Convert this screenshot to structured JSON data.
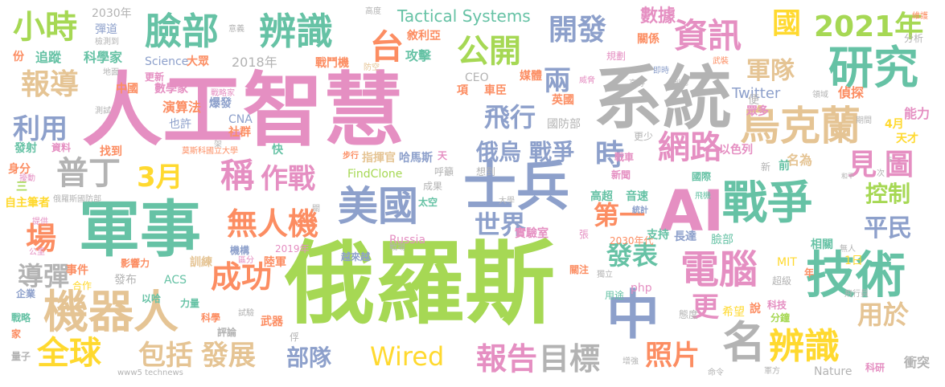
{
  "palette": {
    "pink": "#e58fc2",
    "gray": "#b3b3b3",
    "green": "#a6d854",
    "teal": "#66c2a5",
    "orange": "#fc8d62",
    "blue": "#8da0cb",
    "yellow": "#ffd92f",
    "tan": "#e5c494"
  },
  "words": [
    {
      "text": "人工智慧",
      "color": "#e58fc2"
    },
    {
      "text": "俄羅斯",
      "color": "#a6d854"
    },
    {
      "text": "系統",
      "color": "#b3b3b3"
    },
    {
      "text": "軍事",
      "color": "#66c2a5"
    },
    {
      "text": "士兵",
      "color": "#8da0cb"
    },
    {
      "text": "AI",
      "color": "#e58fc2"
    },
    {
      "text": "戰爭",
      "color": "#66c2a5"
    },
    {
      "text": "技術",
      "color": "#66c2a5"
    },
    {
      "text": "中",
      "color": "#8da0cb"
    },
    {
      "text": "機器人",
      "color": "#e5c494"
    },
    {
      "text": "烏克蘭",
      "color": "#e5c494"
    },
    {
      "text": "研究",
      "color": "#66c2a5"
    },
    {
      "text": "臉部",
      "color": "#66c2a5"
    },
    {
      "text": "辨識",
      "color": "#66c2a5"
    },
    {
      "text": "美國",
      "color": "#8da0cb"
    },
    {
      "text": "電腦",
      "color": "#e58fc2"
    },
    {
      "text": "網路",
      "color": "#e58fc2"
    },
    {
      "text": "名",
      "color": "#b3b3b3"
    },
    {
      "text": "辨識",
      "color": "#ffd92f"
    },
    {
      "text": "報告",
      "color": "#e58fc2"
    },
    {
      "text": "目標",
      "color": "#b3b3b3"
    },
    {
      "text": "Wired",
      "color": "#ffd92f"
    },
    {
      "text": "無人機",
      "color": "#fc8d62"
    },
    {
      "text": "普丁",
      "color": "#b3b3b3"
    },
    {
      "text": "稱",
      "color": "#e58fc2"
    },
    {
      "text": "作戰",
      "color": "#e58fc2"
    },
    {
      "text": "全球",
      "color": "#ffd92f"
    },
    {
      "text": "包括",
      "color": "#e5c494"
    },
    {
      "text": "發展",
      "color": "#e5c494"
    },
    {
      "text": "資訊",
      "color": "#e58fc2"
    },
    {
      "text": "公開",
      "color": "#a6d854"
    },
    {
      "text": "開發",
      "color": "#8da0cb"
    },
    {
      "text": "小時",
      "color": "#a6d854"
    },
    {
      "text": "報導",
      "color": "#e5c494"
    },
    {
      "text": "2021年",
      "color": "#a6d854"
    },
    {
      "text": "軍隊",
      "color": "#e5c494"
    },
    {
      "text": "國",
      "color": "#ffd92f"
    },
    {
      "text": "台",
      "color": "#fc8d62"
    },
    {
      "text": "兩",
      "color": "#8da0cb"
    },
    {
      "text": "飛行",
      "color": "#8da0cb"
    },
    {
      "text": "俄烏",
      "color": "#8da0cb"
    },
    {
      "text": "戰爭",
      "color": "#8da0cb"
    },
    {
      "text": "時",
      "color": "#8da0cb"
    },
    {
      "text": "見",
      "color": "#e58fc2"
    },
    {
      "text": "圖",
      "color": "#e58fc2"
    },
    {
      "text": "利用",
      "color": "#8da0cb"
    },
    {
      "text": "3月",
      "color": "#ffd92f"
    },
    {
      "text": "場",
      "color": "#fc8d62"
    },
    {
      "text": "導彈",
      "color": "#b3b3b3"
    },
    {
      "text": "控制",
      "color": "#a6d854"
    },
    {
      "text": "平民",
      "color": "#8da0cb"
    },
    {
      "text": "第一",
      "color": "#fc8d62"
    },
    {
      "text": "世界",
      "color": "#8da0cb"
    },
    {
      "text": "發表",
      "color": "#66c2a5"
    },
    {
      "text": "成功",
      "color": "#fc8d62"
    },
    {
      "text": "更",
      "color": "#e58fc2"
    },
    {
      "text": "照片",
      "color": "#fc8d62"
    },
    {
      "text": "用於",
      "color": "#e5c494"
    },
    {
      "text": "部隊",
      "color": "#8da0cb"
    },
    {
      "text": "Tactical Systems",
      "color": "#66c2a5"
    },
    {
      "text": "2030年",
      "color": "#b3b3b3"
    },
    {
      "text": "敘利亞",
      "color": "#fc8d62"
    },
    {
      "text": "攻擊",
      "color": "#66c2a5"
    },
    {
      "text": "追蹤",
      "color": "#66c2a5"
    },
    {
      "text": "科學家",
      "color": "#66c2a5"
    },
    {
      "text": "Science",
      "color": "#8da0cb"
    },
    {
      "text": "大眾",
      "color": "#fc8d62"
    },
    {
      "text": "2018年",
      "color": "#b3b3b3"
    },
    {
      "text": "戰鬥機",
      "color": "#fc8d62"
    },
    {
      "text": "數據",
      "color": "#e58fc2"
    },
    {
      "text": "關係",
      "color": "#fc8d62"
    },
    {
      "text": "CEO",
      "color": "#b3b3b3"
    },
    {
      "text": "媒體",
      "color": "#fc8d62"
    },
    {
      "text": "項",
      "color": "#fc8d62"
    },
    {
      "text": "車臣",
      "color": "#fc8d62"
    },
    {
      "text": "中國",
      "color": "#fc8d62"
    },
    {
      "text": "數學家",
      "color": "#e58fc2"
    },
    {
      "text": "演算法",
      "color": "#fc8d62"
    },
    {
      "text": "爆發",
      "color": "#8da0cb"
    },
    {
      "text": "也許",
      "color": "#8da0cb"
    },
    {
      "text": "CNA",
      "color": "#8da0cb"
    },
    {
      "text": "社群",
      "color": "#fc8d62"
    },
    {
      "text": "英國",
      "color": "#fc8d62"
    },
    {
      "text": "國防部",
      "color": "#b3b3b3"
    },
    {
      "text": "Twitter",
      "color": "#8da0cb"
    },
    {
      "text": "偵探",
      "color": "#fc8d62"
    },
    {
      "text": "能力",
      "color": "#e58fc2"
    },
    {
      "text": "發射",
      "color": "#66c2a5"
    },
    {
      "text": "資料",
      "color": "#e58fc2"
    },
    {
      "text": "找到",
      "color": "#fc8d62"
    },
    {
      "text": "莫斯科國立大學",
      "color": "#fc8d62"
    },
    {
      "text": "快",
      "color": "#66c2a5"
    },
    {
      "text": "指揮官",
      "color": "#e5c494"
    },
    {
      "text": "哈馬斯",
      "color": "#8da0cb"
    },
    {
      "text": "FindClone",
      "color": "#a6d854"
    },
    {
      "text": "以色列",
      "color": "#e58fc2"
    },
    {
      "text": "名為",
      "color": "#e5c494"
    },
    {
      "text": "天才",
      "color": "#ffd92f"
    },
    {
      "text": "身分",
      "color": "#fc8d62"
    },
    {
      "text": "三",
      "color": "#a6d854"
    },
    {
      "text": "自主筆者",
      "color": "#ffd92f"
    },
    {
      "text": "Russia",
      "color": "#e58fc2"
    },
    {
      "text": "實驗室",
      "color": "#e58fc2"
    },
    {
      "text": "高超",
      "color": "#66c2a5"
    },
    {
      "text": "音速",
      "color": "#66c2a5"
    },
    {
      "text": "新聞",
      "color": "#e58fc2"
    },
    {
      "text": "國際",
      "color": "#66c2a5"
    },
    {
      "text": "越來越",
      "color": "#8da0cb"
    },
    {
      "text": "太空",
      "color": "#66c2a5"
    },
    {
      "text": "成果",
      "color": "#b3b3b3"
    },
    {
      "text": "相關",
      "color": "#66c2a5"
    },
    {
      "text": "2030年代",
      "color": "#fc8d62"
    },
    {
      "text": "支持",
      "color": "#66c2a5"
    },
    {
      "text": "長達",
      "color": "#8da0cb"
    },
    {
      "text": "臉部",
      "color": "#66c2a5"
    },
    {
      "text": "訓練",
      "color": "#e5c494"
    },
    {
      "text": "機構",
      "color": "#8da0cb"
    },
    {
      "text": "陸軍",
      "color": "#fc8d62"
    },
    {
      "text": "2019年",
      "color": "#e58fc2"
    },
    {
      "text": "影響力",
      "color": "#fc8d62"
    },
    {
      "text": "事件",
      "color": "#fc8d62"
    },
    {
      "text": "合作",
      "color": "#ffd92f"
    },
    {
      "text": "發布",
      "color": "#b3b3b3"
    },
    {
      "text": "ACS",
      "color": "#66c2a5"
    },
    {
      "text": "MIT",
      "color": "#ffd92f"
    },
    {
      "text": "1日",
      "color": "#ffd92f"
    },
    {
      "text": "php",
      "color": "#e58fc2"
    },
    {
      "text": "超級",
      "color": "#b3b3b3"
    },
    {
      "text": "企業",
      "color": "#8da0cb"
    },
    {
      "text": "以哈",
      "color": "#66c2a5"
    },
    {
      "text": "力量",
      "color": "#66c2a5"
    },
    {
      "text": "戰略",
      "color": "#66c2a5"
    },
    {
      "text": "科學",
      "color": "#fc8d62"
    },
    {
      "text": "武器",
      "color": "#fc8d62"
    },
    {
      "text": "評論",
      "color": "#b3b3b3"
    },
    {
      "text": "家",
      "color": "#fc8d62"
    },
    {
      "text": "量子",
      "color": "#b3b3b3"
    },
    {
      "text": "www5 technews",
      "color": "#b3b3b3"
    },
    {
      "text": "用途",
      "color": "#66c2a5"
    },
    {
      "text": "態度",
      "color": "#b3b3b3"
    },
    {
      "text": "希望",
      "color": "#ffd92f"
    },
    {
      "text": "說",
      "color": "#fc8d62"
    },
    {
      "text": "科技",
      "color": "#e58fc2"
    },
    {
      "text": "分鐘",
      "color": "#a6d854"
    },
    {
      "text": "Nature",
      "color": "#b3b3b3"
    },
    {
      "text": "科研",
      "color": "#e58fc2"
    },
    {
      "text": "衝突",
      "color": "#b3b3b3"
    },
    {
      "text": "命令",
      "color": "#b3b3b3"
    },
    {
      "text": "軍方",
      "color": "#b3b3b3"
    },
    {
      "text": "增強",
      "color": "#b3b3b3"
    },
    {
      "text": "高度",
      "color": "#b3b3b3"
    },
    {
      "text": "意義",
      "color": "#b3b3b3"
    },
    {
      "text": "防空",
      "color": "#e5c494"
    },
    {
      "text": "威脅",
      "color": "#e58fc2"
    },
    {
      "text": "規劃",
      "color": "#e58fc2"
    },
    {
      "text": "地面",
      "color": "#b3b3b3"
    },
    {
      "text": "戰略家",
      "color": "#e58fc2"
    },
    {
      "text": "更新",
      "color": "#e58fc2"
    },
    {
      "text": "測試",
      "color": "#b3b3b3"
    },
    {
      "text": "架",
      "color": "#b3b3b3"
    },
    {
      "text": "彈道",
      "color": "#8da0cb"
    },
    {
      "text": "檢測到",
      "color": "#b3b3b3"
    },
    {
      "text": "份",
      "color": "#fc8d62"
    },
    {
      "text": "即時",
      "color": "#8da0cb"
    },
    {
      "text": "高等",
      "color": "#b3b3b3"
    },
    {
      "text": "武裝",
      "color": "#fc8d62"
    },
    {
      "text": "列舉",
      "color": "#b3b3b3"
    },
    {
      "text": "維護",
      "color": "#fc8d62"
    },
    {
      "text": "分析",
      "color": "#b3b3b3"
    },
    {
      "text": "領域",
      "color": "#b3b3b3"
    },
    {
      "text": "期間",
      "color": "#b3b3b3"
    },
    {
      "text": "眾多",
      "color": "#e58fc2"
    },
    {
      "text": "便",
      "color": "#b3b3b3"
    },
    {
      "text": "4月",
      "color": "#ffd92f"
    },
    {
      "text": "戰車",
      "color": "#e58fc2"
    },
    {
      "text": "更少",
      "color": "#b3b3b3"
    },
    {
      "text": "步行",
      "color": "#fc8d62"
    },
    {
      "text": "呼籲",
      "color": "#b3b3b3"
    },
    {
      "text": "想到",
      "color": "#b3b3b3"
    },
    {
      "text": "天",
      "color": "#e58fc2"
    },
    {
      "text": "前",
      "color": "#66c2a5"
    },
    {
      "text": "新",
      "color": "#b3b3b3"
    },
    {
      "text": "和平",
      "color": "#b3b3b3"
    },
    {
      "text": "次",
      "color": "#b3b3b3"
    },
    {
      "text": "s",
      "color": "#b3b3b3"
    },
    {
      "text": "擾動",
      "color": "#e58fc2"
    },
    {
      "text": "俄羅斯國防部",
      "color": "#b3b3b3"
    },
    {
      "text": "大學",
      "color": "#b3b3b3"
    },
    {
      "text": "統計",
      "color": "#8da0cb"
    },
    {
      "text": "飛機",
      "color": "#66c2a5"
    },
    {
      "text": "提供",
      "color": "#e58fc2"
    },
    {
      "text": "公里",
      "color": "#e58fc2"
    },
    {
      "text": "關",
      "color": "#b3b3b3"
    },
    {
      "text": "區分",
      "color": "#e58fc2"
    },
    {
      "text": "戰場",
      "color": "#b3b3b3"
    },
    {
      "text": "張",
      "color": "#e58fc2"
    },
    {
      "text": "無人",
      "color": "#b3b3b3"
    },
    {
      "text": "年",
      "color": "#fc8d62"
    },
    {
      "text": "獨立",
      "color": "#b3b3b3"
    },
    {
      "text": "飛行員",
      "color": "#b3b3b3"
    },
    {
      "text": "試驗",
      "color": "#b3b3b3"
    },
    {
      "text": "俘",
      "color": "#b3b3b3"
    },
    {
      "text": "關注",
      "color": "#fc8d62"
    }
  ]
}
